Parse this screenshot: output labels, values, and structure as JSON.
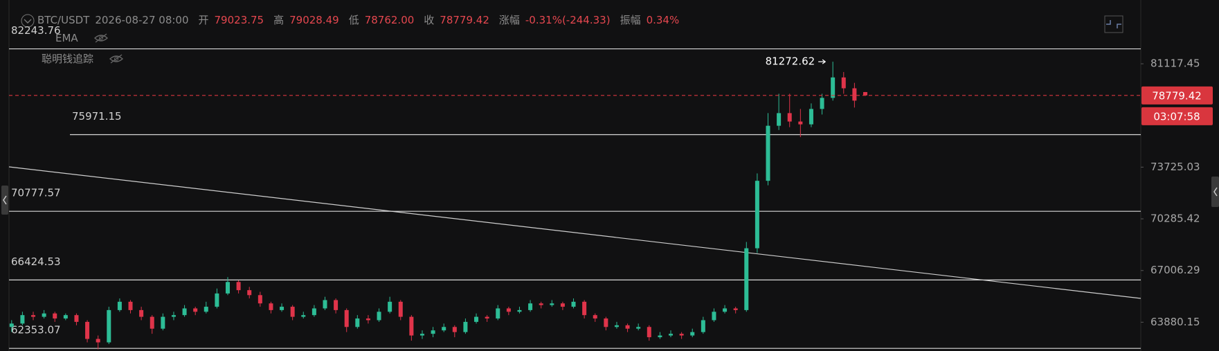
{
  "chart_data": {
    "type": "candlestick",
    "header": {
      "symbol": "BTC/USDT",
      "time": "2026-08-27 08:00",
      "fields": [
        {
          "label": "开",
          "value": "79023.75"
        },
        {
          "label": "高",
          "value": "79028.49"
        },
        {
          "label": "低",
          "value": "78762.00"
        },
        {
          "label": "收",
          "value": "78779.42"
        },
        {
          "label": "涨幅",
          "value": "-0.31%(-244.33)"
        },
        {
          "label": "振幅",
          "value": "0.34%"
        }
      ]
    },
    "indicators": [
      "EMA",
      "聪明钱追踪"
    ],
    "log_scale": true,
    "ylim": [
      62202,
      86043
    ],
    "yticks": [
      63880.15,
      67006.29,
      70285.42,
      73725.03,
      81117.45
    ],
    "levels": [
      82243.76,
      75971.15,
      70777.57,
      66424.53,
      62353.07
    ],
    "high_label": 81272.62,
    "countdown": "03:07:58",
    "colors": {
      "up": "#2dbd96",
      "down": "#e0344a",
      "level": "#d9d9d9",
      "last": "#d9363e"
    },
    "ohlc": [
      [
        63600,
        64000,
        63300,
        63800
      ],
      [
        63800,
        64500,
        63700,
        64300
      ],
      [
        64300,
        64500,
        64000,
        64200
      ],
      [
        64200,
        64600,
        64100,
        64400
      ],
      [
        64400,
        64500,
        63900,
        64100
      ],
      [
        64100,
        64400,
        64000,
        64300
      ],
      [
        64300,
        64400,
        63700,
        63900
      ],
      [
        63900,
        64000,
        62700,
        62900
      ],
      [
        62900,
        63100,
        62300,
        62700
      ],
      [
        62700,
        64800,
        62600,
        64600
      ],
      [
        64600,
        65300,
        64500,
        65100
      ],
      [
        65100,
        65200,
        64400,
        64600
      ],
      [
        64600,
        64800,
        64000,
        64200
      ],
      [
        64200,
        64300,
        63200,
        63500
      ],
      [
        63500,
        64400,
        63400,
        64200
      ],
      [
        64200,
        64500,
        64000,
        64300
      ],
      [
        64300,
        64900,
        64200,
        64700
      ],
      [
        64700,
        64800,
        64300,
        64500
      ],
      [
        64500,
        65100,
        64400,
        64800
      ],
      [
        64800,
        65900,
        64700,
        65600
      ],
      [
        65600,
        66600,
        65500,
        66300
      ],
      [
        66300,
        66400,
        65600,
        65800
      ],
      [
        65800,
        66000,
        65300,
        65500
      ],
      [
        65500,
        65700,
        64800,
        65000
      ],
      [
        65000,
        65100,
        64400,
        64600
      ],
      [
        64600,
        65000,
        64500,
        64800
      ],
      [
        64800,
        64900,
        64000,
        64200
      ],
      [
        64200,
        64500,
        64100,
        64300
      ],
      [
        64300,
        64900,
        64200,
        64700
      ],
      [
        64700,
        65400,
        64600,
        65200
      ],
      [
        65200,
        65300,
        64400,
        64600
      ],
      [
        64600,
        64700,
        63300,
        63600
      ],
      [
        63600,
        64300,
        63500,
        64100
      ],
      [
        64100,
        64300,
        63800,
        64000
      ],
      [
        64000,
        64700,
        63900,
        64500
      ],
      [
        64500,
        65400,
        64400,
        65100
      ],
      [
        65100,
        65200,
        64000,
        64200
      ],
      [
        64200,
        64300,
        62800,
        63100
      ],
      [
        63100,
        63400,
        62900,
        63200
      ],
      [
        63200,
        63600,
        63000,
        63400
      ],
      [
        63400,
        63800,
        63300,
        63600
      ],
      [
        63600,
        63700,
        63000,
        63300
      ],
      [
        63300,
        64100,
        63200,
        63900
      ],
      [
        63900,
        64400,
        63800,
        64200
      ],
      [
        64200,
        64300,
        63900,
        64100
      ],
      [
        64100,
        64900,
        64000,
        64700
      ],
      [
        64700,
        64800,
        64300,
        64500
      ],
      [
        64500,
        64800,
        64400,
        64600
      ],
      [
        64600,
        65200,
        64500,
        65000
      ],
      [
        65000,
        65100,
        64700,
        64900
      ],
      [
        64900,
        65200,
        64800,
        65000
      ],
      [
        65000,
        65100,
        64600,
        64800
      ],
      [
        64800,
        65300,
        64700,
        65100
      ],
      [
        65100,
        65200,
        64100,
        64300
      ],
      [
        64300,
        64400,
        63900,
        64100
      ],
      [
        64100,
        64200,
        63400,
        63600
      ],
      [
        63600,
        63900,
        63500,
        63700
      ],
      [
        63700,
        63800,
        63300,
        63500
      ],
      [
        63500,
        63800,
        63400,
        63600
      ],
      [
        63600,
        63700,
        62800,
        63000
      ],
      [
        63000,
        63300,
        62900,
        63100
      ],
      [
        63100,
        63400,
        63000,
        63200
      ],
      [
        63200,
        63300,
        62900,
        63100
      ],
      [
        63100,
        63500,
        63000,
        63300
      ],
      [
        63300,
        64200,
        63200,
        64000
      ],
      [
        64000,
        64700,
        63900,
        64500
      ],
      [
        64500,
        64900,
        64400,
        64700
      ],
      [
        64700,
        64800,
        64400,
        64600
      ],
      [
        64600,
        68800,
        64500,
        68400
      ],
      [
        68400,
        73300,
        68100,
        72800
      ],
      [
        72800,
        77500,
        72500,
        76600
      ],
      [
        76600,
        78900,
        76300,
        77500
      ],
      [
        77500,
        78900,
        76500,
        76900
      ],
      [
        76900,
        77800,
        75800,
        76700
      ],
      [
        76700,
        78200,
        76500,
        77800
      ],
      [
        77800,
        78900,
        77400,
        78600
      ],
      [
        78600,
        81272.62,
        78400,
        80100
      ],
      [
        80100,
        80500,
        78900,
        79300
      ],
      [
        79300,
        79700,
        77900,
        78400
      ],
      [
        79023.75,
        79028.49,
        78762,
        78779.42
      ]
    ]
  }
}
